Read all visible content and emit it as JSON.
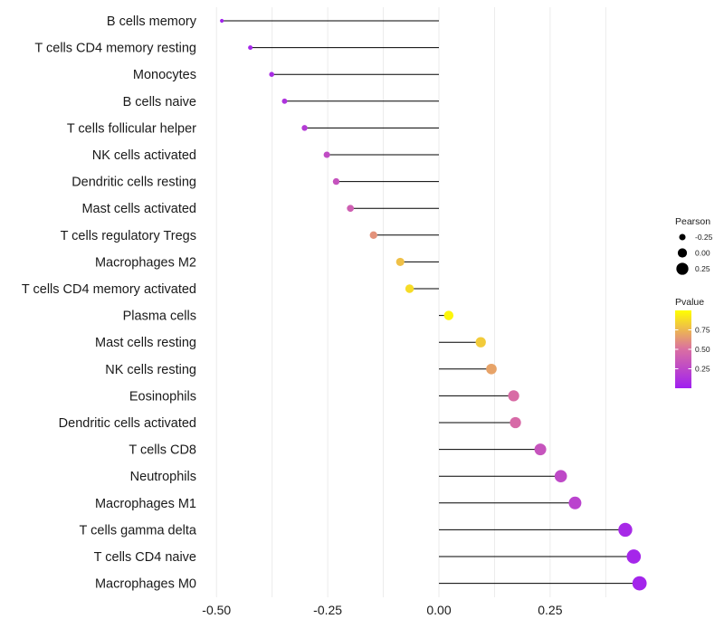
{
  "chart_data": {
    "type": "lollipop",
    "title": "",
    "xlabel": "",
    "ylabel": "",
    "xlim": [
      -0.5,
      0.46
    ],
    "x_ticks": [
      -0.5,
      -0.25,
      0.0,
      0.25
    ],
    "x_tick_labels": [
      "-0.50",
      "-0.25",
      "0.00",
      "0.25"
    ],
    "grid": true,
    "categories": [
      "B cells memory",
      "T cells CD4 memory resting",
      "Monocytes",
      "B cells naive",
      "T cells follicular helper",
      "NK cells activated",
      "Dendritic cells resting",
      "Mast cells activated",
      "T cells regulatory  Tregs ",
      "Macrophages M2",
      "T cells CD4 memory activated",
      "Plasma cells",
      "Mast cells resting",
      "NK cells resting",
      "Eosinophils",
      "Dendritic cells activated",
      "T cells CD8",
      "Neutrophils",
      "Macrophages M1",
      "T cells gamma delta",
      "T cells CD4 naive",
      "Macrophages M0"
    ],
    "pearson": [
      -0.488,
      -0.424,
      -0.376,
      -0.347,
      -0.302,
      -0.252,
      -0.231,
      -0.199,
      -0.147,
      -0.087,
      -0.066,
      0.022,
      0.094,
      0.118,
      0.168,
      0.172,
      0.228,
      0.274,
      0.306,
      0.419,
      0.438,
      0.451
    ],
    "pvalue": [
      0.02,
      0.04,
      0.08,
      0.12,
      0.17,
      0.28,
      0.32,
      0.4,
      0.62,
      0.78,
      0.88,
      0.97,
      0.82,
      0.68,
      0.48,
      0.47,
      0.33,
      0.26,
      0.22,
      0.06,
      0.04,
      0.03
    ],
    "legend": {
      "position": "right",
      "size": {
        "title": "Pearson",
        "labels": [
          "-0.25",
          "0.00",
          "0.25"
        ],
        "values": [
          -0.25,
          0.0,
          0.25
        ]
      },
      "color": {
        "title": "Pvalue",
        "labels": [
          "0.75",
          "0.50",
          "0.25"
        ],
        "values": [
          0.75,
          0.5,
          0.25
        ],
        "range": [
          0.0,
          1.0
        ],
        "low_color": "#a020f0",
        "high_color": "#ffff00"
      }
    },
    "colors": {
      "stem": "#000000",
      "grid": "#ebebeb",
      "low": "#a020f0",
      "mid": "#da6fa2",
      "high": "#ffff00"
    }
  }
}
